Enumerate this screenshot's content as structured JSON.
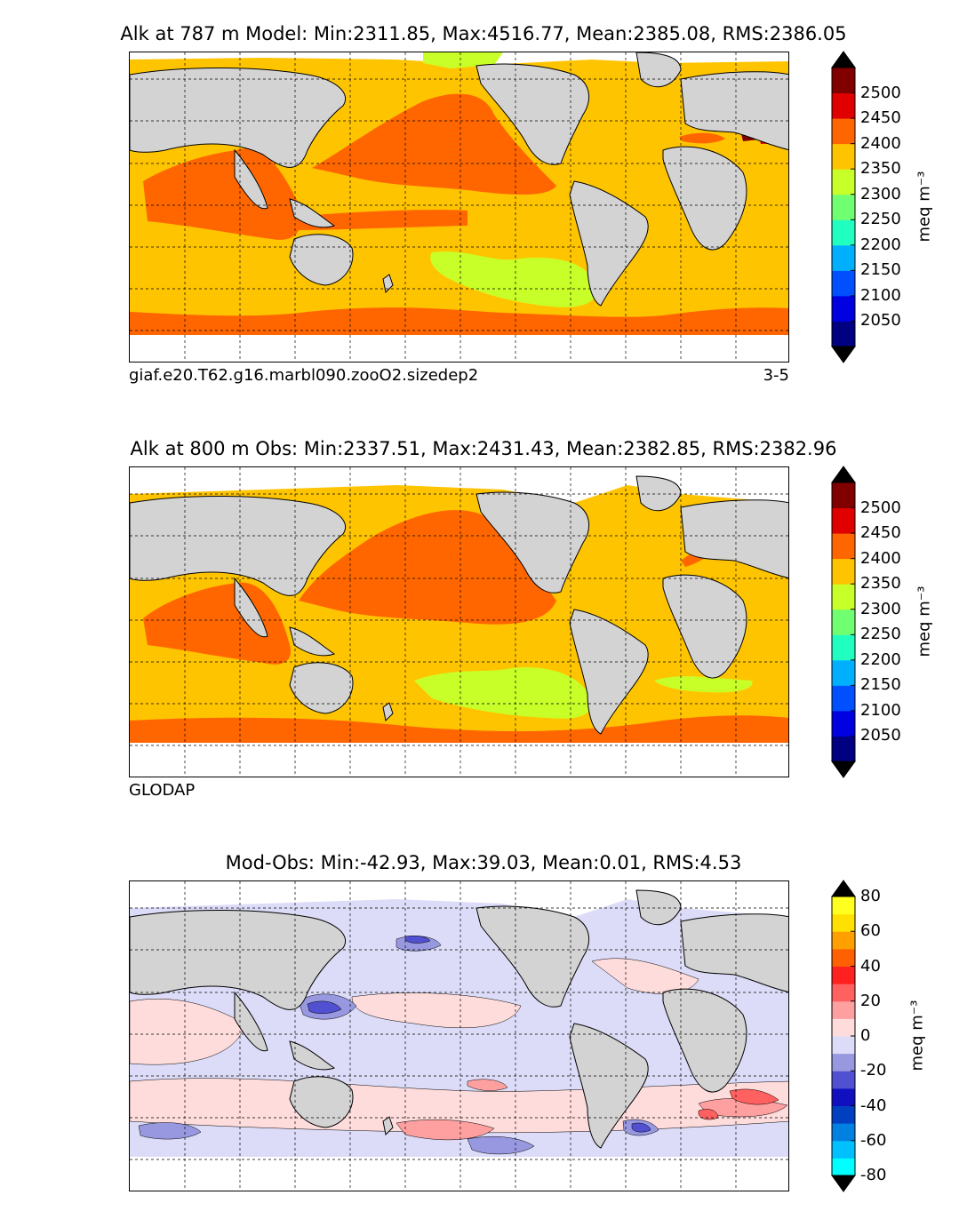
{
  "panels": [
    {
      "title": "Alk at 787 m Model: Min:2311.85, Max:4516.77, Mean:2385.08, RMS:2386.05",
      "caption_left": "giaf.e20.T62.g16.marbl090.zooO2.sizedep2",
      "caption_right": "3-5"
    },
    {
      "title": "Alk at 800 m Obs: Min:2337.51, Max:2431.43, Mean:2382.85, RMS:2382.96",
      "caption_left": "GLODAP",
      "caption_right": ""
    },
    {
      "title": "Mod-Obs: Min:-42.93, Max:39.03, Mean:0.01, RMS:4.53",
      "caption_left": "",
      "caption_right": ""
    }
  ],
  "colorbars": {
    "abs": {
      "ticks": [
        "2050",
        "2100",
        "2150",
        "2200",
        "2250",
        "2300",
        "2350",
        "2400",
        "2450",
        "2500"
      ],
      "colors": [
        "#000080",
        "#0000e0",
        "#0050ff",
        "#00b0ff",
        "#20ffc0",
        "#70ff70",
        "#c8ff28",
        "#ffc400",
        "#ff6600",
        "#e00000",
        "#800000"
      ],
      "under": "#000000",
      "over": "#000000",
      "unit": "meq m⁻³"
    },
    "diff": {
      "ticks": [
        "-80",
        "-60",
        "-40",
        "-20",
        "0",
        "20",
        "40",
        "60",
        "80"
      ],
      "colors": [
        "#00ffff",
        "#00c0ff",
        "#0080e0",
        "#0040c0",
        "#1010c0",
        "#5050d0",
        "#9898e0",
        "#dcdcf8",
        "#ffdcdc",
        "#ffa0a0",
        "#ff6060",
        "#ff2020",
        "#ff6000",
        "#ffa000",
        "#ffe000",
        "#ffff20"
      ],
      "under": "#000000",
      "over": "#000000",
      "unit": "meq m⁻³"
    }
  },
  "map_colors": {
    "land": "#d3d3d3",
    "coast": "#000000",
    "nodata": "#ffffff",
    "grid": "#000000"
  }
}
